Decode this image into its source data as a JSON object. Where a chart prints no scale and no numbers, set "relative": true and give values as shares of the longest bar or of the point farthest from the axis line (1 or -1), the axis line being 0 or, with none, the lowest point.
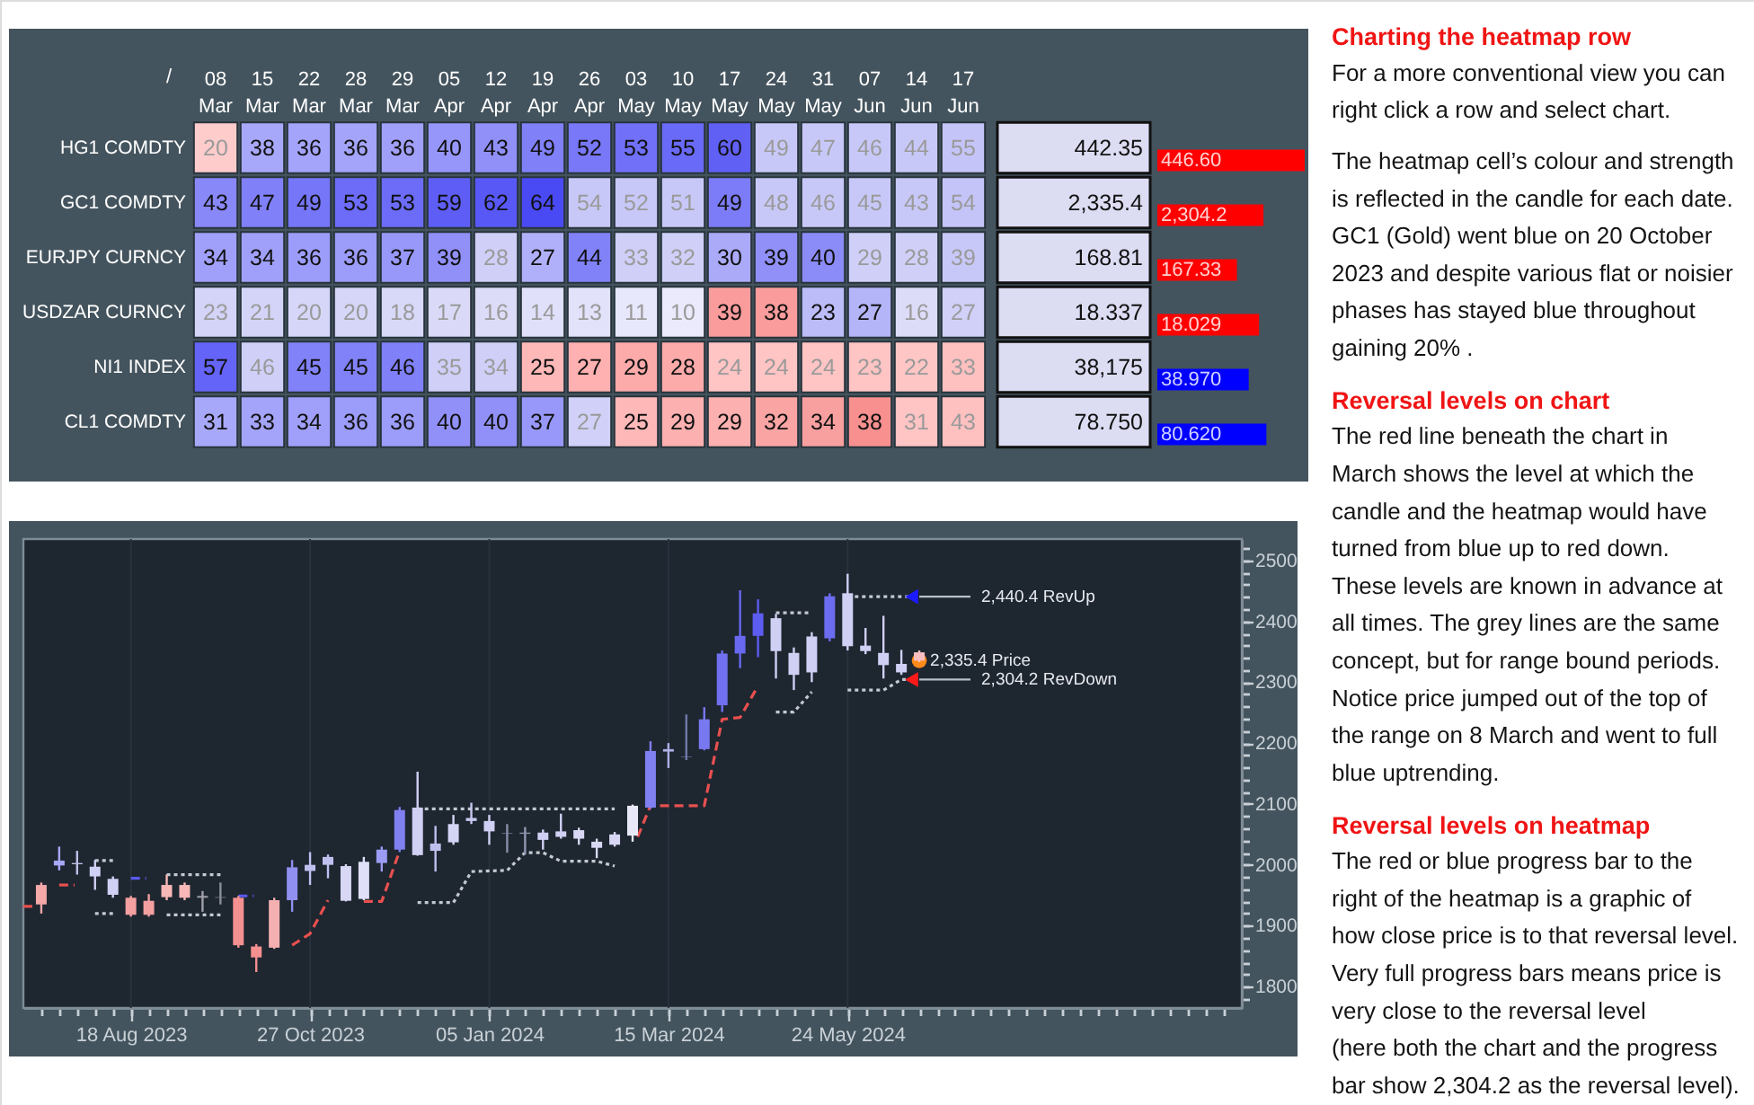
{
  "chart_data": [
    {
      "type": "heatmap",
      "categories": [
        "08 Mar",
        "15 Mar",
        "22 Mar",
        "28 Mar",
        "29 Mar",
        "05 Apr",
        "12 Apr",
        "19 Apr",
        "26 Apr",
        "03 May",
        "10 May",
        "17 May",
        "24 May",
        "31 May",
        "07 Jun",
        "14 Jun",
        "17 Jun"
      ],
      "y_categories": [
        "HG1 COMDTY",
        "GC1 COMDTY",
        "EURJPY CURNCY",
        "USDZAR CURNCY",
        "NI1 INDEX",
        "CL1 COMDTY"
      ],
      "y2_categories": [
        "442.35",
        "2,335.4",
        "168.81",
        "18.337",
        "38,175",
        "78.750"
      ],
      "cells": [
        [
          20,
          38,
          36,
          36,
          36,
          40,
          43,
          49,
          52,
          53,
          55,
          60,
          49,
          47,
          46,
          44,
          55
        ],
        [
          43,
          47,
          49,
          53,
          53,
          59,
          62,
          64,
          54,
          52,
          51,
          49,
          48,
          46,
          45,
          43,
          54
        ],
        [
          34,
          34,
          36,
          36,
          37,
          39,
          28,
          27,
          44,
          33,
          32,
          30,
          39,
          40,
          29,
          28,
          39
        ],
        [
          23,
          21,
          20,
          20,
          18,
          17,
          16,
          14,
          13,
          11,
          10,
          39,
          38,
          23,
          27,
          16,
          27
        ],
        [
          57,
          46,
          45,
          45,
          46,
          35,
          34,
          25,
          27,
          29,
          28,
          24,
          24,
          24,
          23,
          22,
          33
        ],
        [
          31,
          33,
          34,
          36,
          36,
          40,
          40,
          37,
          27,
          25,
          29,
          29,
          32,
          34,
          38,
          31,
          43
        ]
      ],
      "colors": [
        [
          "#ffcccc",
          "#a8a8fa",
          "#a4a4fa",
          "#a4a4fa",
          "#a0a0fa",
          "#9696fa",
          "#9090f8",
          "#8080f8",
          "#7878f8",
          "#7070f8",
          "#6a6af8",
          "#6060f5",
          "#c8c8f8",
          "#c8c8f8",
          "#c8c8f8",
          "#c8c8f8",
          "#c4c4f8"
        ],
        [
          "#8888f8",
          "#8080f8",
          "#7676f8",
          "#6c6cf8",
          "#6c6cf8",
          "#5e5ef6",
          "#5858f6",
          "#4a4af4",
          "#c8c8f8",
          "#c8c8f8",
          "#c8c8f8",
          "#7c7cf8",
          "#c8c8f8",
          "#c8c8f8",
          "#c8c8f8",
          "#c8c8f8",
          "#c4c4f8"
        ],
        [
          "#a0a0fa",
          "#a0a0fa",
          "#9c9cfa",
          "#9c9cfa",
          "#9898fa",
          "#9090f8",
          "#cfcff8",
          "#b0b0fa",
          "#8282f8",
          "#cfcff8",
          "#cfcff8",
          "#aaaaf8",
          "#9090f8",
          "#8c8cf8",
          "#cfcff8",
          "#cfcff8",
          "#c8c8f8"
        ],
        [
          "#d4d4f8",
          "#d4d4f8",
          "#d6d6f8",
          "#d6d6f8",
          "#d8d8f8",
          "#dadaf8",
          "#dcdcf8",
          "#e0e0fa",
          "#e2e2fa",
          "#e8e8fc",
          "#eaeafc",
          "#fa9c9c",
          "#fa9c9c",
          "#bcbcf8",
          "#b4b4f8",
          "#dcdcf8",
          "#d0d0f8"
        ],
        [
          "#6464f8",
          "#cfcff8",
          "#8282f8",
          "#8282f8",
          "#8080f8",
          "#cfcff8",
          "#cfcff8",
          "#ffb8b8",
          "#ffb0b0",
          "#fcaaaa",
          "#fcaaaa",
          "#ffc4c4",
          "#ffc4c4",
          "#ffc4c4",
          "#ffc4c4",
          "#ffc6c6",
          "#ffc0c0"
        ],
        [
          "#a8a8fa",
          "#a4a4fa",
          "#a0a0fa",
          "#9c9cfa",
          "#9c9cfa",
          "#9090f8",
          "#9090f8",
          "#9898fa",
          "#d0d0f8",
          "#ffb8b8",
          "#fcb0b0",
          "#fcb0b0",
          "#faa4a4",
          "#f8a0a0",
          "#f89090",
          "#ffc4c4",
          "#ffc0c0"
        ]
      ],
      "data_labels": true,
      "annotations": [
        "/"
      ]
    },
    {
      "type": "bar",
      "orientation": "horizontal",
      "relative": true,
      "categories": [
        "446.60",
        "2,304.2",
        "167.33",
        "18.029",
        "38.970",
        "80.620"
      ],
      "values": [
        1,
        0.72,
        0.54,
        0.69,
        0.62,
        0.74
      ],
      "colors": [
        "#ff0000",
        "#ff0000",
        "#ff0000",
        "#ff0000",
        "#0000ff",
        "#0000ff"
      ]
    },
    {
      "type": "candlestick",
      "x": [
        "2023-07-14",
        "2023-07-21",
        "2023-07-28",
        "2023-08-04",
        "2023-08-11",
        "2023-08-18",
        "2023-08-25",
        "2023-09-01",
        "2023-09-08",
        "2023-09-15",
        "2023-09-22",
        "2023-09-29",
        "2023-10-06",
        "2023-10-13",
        "2023-10-20",
        "2023-10-27",
        "2023-11-03",
        "2023-11-10",
        "2023-11-17",
        "2023-11-24",
        "2023-12-01",
        "2023-12-08",
        "2023-12-15",
        "2023-12-22",
        "2023-12-29",
        "2024-01-05",
        "2024-01-12",
        "2024-01-19",
        "2024-01-26",
        "2024-02-02",
        "2024-02-09",
        "2024-02-16",
        "2024-02-23",
        "2024-03-01",
        "2024-03-08",
        "2024-03-15",
        "2024-03-22",
        "2024-03-29",
        "2024-04-05",
        "2024-04-12",
        "2024-04-19",
        "2024-04-26",
        "2024-05-03",
        "2024-05-10",
        "2024-05-17",
        "2024-05-24",
        "2024-05-31",
        "2024-06-07",
        "2024-06-14",
        "2024-06-21"
      ],
      "ohlc": [
        [
          1967,
          1971,
          1920,
          1935
        ],
        [
          1999,
          2030,
          1991,
          2007
        ],
        [
          2001,
          2023,
          1984,
          2003
        ],
        [
          1981,
          2008,
          1959,
          1997
        ],
        [
          1951,
          1981,
          1946,
          1977
        ],
        [
          1946,
          1949,
          1915,
          1918
        ],
        [
          1941,
          1952,
          1915,
          1918
        ],
        [
          1967,
          1984,
          1942,
          1947
        ],
        [
          1967,
          1971,
          1942,
          1946
        ],
        [
          1946,
          1957,
          1923,
          1949
        ],
        [
          1946,
          1971,
          1935,
          1947
        ],
        [
          1946,
          1949,
          1864,
          1868
        ],
        [
          1866,
          1870,
          1824,
          1848
        ],
        [
          1942,
          1946,
          1862,
          1864
        ],
        [
          1942,
          2008,
          1923,
          1996
        ],
        [
          1990,
          2021,
          1967,
          2000
        ],
        [
          2000,
          2017,
          1978,
          2013
        ],
        [
          1941,
          2001,
          1940,
          1998
        ],
        [
          1944,
          2013,
          1942,
          2005
        ],
        [
          2003,
          2030,
          1989,
          2025
        ],
        [
          2025,
          2095,
          2021,
          2090
        ],
        [
          2016,
          2153,
          2015,
          2094
        ],
        [
          2023,
          2064,
          1989,
          2035
        ],
        [
          2037,
          2082,
          2033,
          2067
        ],
        [
          2072,
          2102,
          2067,
          2077
        ],
        [
          2055,
          2082,
          2033,
          2072
        ],
        [
          2051,
          2067,
          2020,
          2052
        ],
        [
          2051,
          2062,
          2017,
          2053
        ],
        [
          2041,
          2058,
          2025,
          2053
        ],
        [
          2046,
          2084,
          2043,
          2055
        ],
        [
          2043,
          2061,
          2033,
          2057
        ],
        [
          2028,
          2043,
          2011,
          2038
        ],
        [
          2033,
          2054,
          2030,
          2050
        ],
        [
          2048,
          2099,
          2038,
          2097
        ],
        [
          2094,
          2203,
          2092,
          2187
        ],
        [
          2186,
          2200,
          2159,
          2190
        ],
        [
          2177,
          2247,
          2172,
          2178
        ],
        [
          2190,
          2259,
          2188,
          2239
        ],
        [
          2262,
          2352,
          2251,
          2347
        ],
        [
          2347,
          2451,
          2323,
          2376
        ],
        [
          2376,
          2436,
          2341,
          2413
        ],
        [
          2351,
          2412,
          2306,
          2405
        ],
        [
          2312,
          2357,
          2287,
          2348
        ],
        [
          2316,
          2382,
          2300,
          2375
        ],
        [
          2372,
          2446,
          2367,
          2441
        ],
        [
          2359,
          2478,
          2352,
          2446
        ],
        [
          2351,
          2389,
          2346,
          2360
        ],
        [
          2328,
          2409,
          2306,
          2348
        ],
        [
          2316,
          2353,
          2312,
          2330
        ],
        [
          2349,
          2352,
          2333,
          2335.4
        ]
      ],
      "colors": [
        "#f4a8a8",
        "#a8a8f8",
        "#c0c0e8",
        "#d0d0f4",
        "#d0d0f4",
        "#f4a0a0",
        "#f4a0a0",
        "#f8b8b8",
        "#f8b8b8",
        "#a0a0a8",
        "#8a8f99",
        "#f49090",
        "#f49090",
        "#f4b0b0",
        "#9090f0",
        "#c0c0f0",
        "#c0c0f0",
        "#d8d8f4",
        "#e0e0f8",
        "#9c9cf4",
        "#8080f0",
        "#d0d0f4",
        "#c0c0ee",
        "#d4d4f4",
        "#c8c8f0",
        "#d0d0f4",
        "#8890a8",
        "#9098b0",
        "#d0d0f4",
        "#d0d0f4",
        "#d8d8f4",
        "#d8d8f4",
        "#d8d8f4",
        "#e8e8f8",
        "#8080f0",
        "#b0b0e8",
        "#707aa8",
        "#7878f0",
        "#7070f0",
        "#6868f0",
        "#5c5cf0",
        "#d0d0f4",
        "#d0d0f4",
        "#d0d0f4",
        "#6c6cf0",
        "#d0d0f4",
        "#d0d0f4",
        "#d0d0f4",
        "#d0d0f4",
        "#f8c0c0"
      ],
      "series": [
        {
          "type": "line",
          "color": "#e8504f",
          "line_style": "dashed",
          "x": [
            "2023-07-07",
            "2023-07-11",
            "2023-07-15",
            "2023-07-21",
            "2023-07-27",
            "2023-09-01",
            "2023-10-20",
            "2023-10-27",
            "2023-11-03",
            "2023-11-10",
            "2023-11-17",
            "2023-11-24",
            "2023-12-01",
            "2024-01-15",
            "2024-03-03",
            "2024-03-08",
            "2024-03-29",
            "2024-04-05",
            "2024-04-12",
            "2024-04-19"
          ],
          "values": [
            1932,
            1932,
            null,
            1967,
            1967,
            null,
            1868,
            1887,
            1942,
            null,
            1940,
            1940,
            2023,
            null,
            2046,
            2097,
            2097,
            2239,
            2242,
            2294
          ]
        },
        {
          "type": "line",
          "color": "#5a5af0",
          "line_style": "dashed",
          "x": [
            "2023-08-18",
            "2023-08-24",
            "2023-09-10",
            "2023-09-29",
            "2023-10-05"
          ],
          "values": [
            1978,
            1978,
            null,
            1949,
            1949
          ]
        },
        {
          "type": "line",
          "color": "#c4c8d0",
          "line_style": "dotted",
          "x": [
            "2023-08-04",
            "2023-08-11",
            "2023-08-20",
            "2023-09-01",
            "2023-09-22",
            "2023-10-30",
            "2023-12-08",
            "2024-02-23",
            "2024-03-30",
            "2024-04-26",
            "2024-05-10",
            "2024-05-17",
            "2024-05-24",
            "2024-06-17"
          ],
          "values": [
            2007,
            2007,
            null,
            1984,
            1984,
            null,
            2092,
            2092,
            null,
            2414,
            2414,
            null,
            2440.4,
            2440.4
          ]
        },
        {
          "type": "line",
          "color": "#c4c8d0",
          "line_style": "dotted",
          "x": [
            "2023-08-04",
            "2023-08-11",
            "2023-08-20",
            "2023-09-01",
            "2023-09-22",
            "2023-10-30",
            "2023-12-08",
            "2023-12-22",
            "2023-12-29",
            "2024-01-12",
            "2024-01-19",
            "2024-01-26",
            "2024-02-02",
            "2024-02-16",
            "2024-02-23",
            "2024-03-30",
            "2024-04-26",
            "2024-05-03",
            "2024-05-10",
            "2024-05-17",
            "2024-05-24",
            "2024-06-07",
            "2024-06-14",
            "2024-06-17"
          ],
          "values": [
            1920,
            1920,
            null,
            1918,
            1918,
            null,
            1938,
            1938,
            1989,
            1991,
            2020,
            2020,
            2006,
            2006,
            1998,
            null,
            2251,
            2251,
            2284,
            null,
            2287,
            2287,
            2304.2,
            2304.2
          ]
        },
        {
          "type": "line",
          "color": "#b8bec6",
          "x": [
            "2024-06-21",
            "2024-07-11"
          ],
          "values": [
            2440.4,
            2440.4
          ]
        },
        {
          "type": "line",
          "color": "#b8bec6",
          "x": [
            "2024-06-21",
            "2024-07-11"
          ],
          "values": [
            2304.2,
            2304.2
          ]
        },
        {
          "type": "scatter",
          "marker": "triangle",
          "color": "#1a1aff",
          "x": [
            "2024-06-18"
          ],
          "values": [
            2440.4
          ]
        },
        {
          "type": "scatter",
          "marker": "triangle",
          "color": "#ff1a1a",
          "x": [
            "2024-06-18"
          ],
          "values": [
            2304.2
          ]
        },
        {
          "type": "scatter",
          "marker": "circle",
          "color": "#ff8a1a",
          "x": [
            "2024-06-21"
          ],
          "values": [
            2335.4
          ]
        }
      ],
      "annotations": [
        {
          "text": "2,440.4 RevUp",
          "x": "2024-07-11",
          "y": 2440.4
        },
        {
          "text": "2,335.4 Price",
          "x": "2024-06-21",
          "y": 2335.4
        },
        {
          "text": "2,304.2 RevDown",
          "x": "2024-07-11",
          "y": 2304.2
        }
      ],
      "xlim": [
        "2023-07-07",
        "2024-10-25"
      ],
      "ylim": [
        1765,
        2535
      ],
      "xticks": [
        {
          "value": "2023-07-14",
          "label": null
        },
        {
          "value": "2023-07-21",
          "label": null
        },
        {
          "value": "2023-07-28",
          "label": null
        },
        {
          "value": "2023-08-04",
          "label": null
        },
        {
          "value": "2023-08-11",
          "label": null
        },
        {
          "value": "2023-08-18",
          "label": "18 Aug 2023"
        },
        {
          "value": "2023-08-25",
          "label": null
        },
        {
          "value": "2023-09-01",
          "label": null
        },
        {
          "value": "2023-09-08",
          "label": null
        },
        {
          "value": "2023-09-15",
          "label": null
        },
        {
          "value": "2023-09-22",
          "label": null
        },
        {
          "value": "2023-09-29",
          "label": null
        },
        {
          "value": "2023-10-06",
          "label": null
        },
        {
          "value": "2023-10-13",
          "label": null
        },
        {
          "value": "2023-10-20",
          "label": null
        },
        {
          "value": "2023-10-27",
          "label": "27 Oct 2023"
        },
        {
          "value": "2023-11-03",
          "label": null
        },
        {
          "value": "2023-11-10",
          "label": null
        },
        {
          "value": "2023-11-17",
          "label": null
        },
        {
          "value": "2023-11-24",
          "label": null
        },
        {
          "value": "2023-12-01",
          "label": null
        },
        {
          "value": "2023-12-08",
          "label": null
        },
        {
          "value": "2023-12-15",
          "label": null
        },
        {
          "value": "2023-12-22",
          "label": null
        },
        {
          "value": "2023-12-29",
          "label": null
        },
        {
          "value": "2024-01-05",
          "label": "05 Jan 2024"
        },
        {
          "value": "2024-01-12",
          "label": null
        },
        {
          "value": "2024-01-19",
          "label": null
        },
        {
          "value": "2024-01-26",
          "label": null
        },
        {
          "value": "2024-02-02",
          "label": null
        },
        {
          "value": "2024-02-09",
          "label": null
        },
        {
          "value": "2024-02-16",
          "label": null
        },
        {
          "value": "2024-02-23",
          "label": null
        },
        {
          "value": "2024-03-01",
          "label": null
        },
        {
          "value": "2024-03-08",
          "label": null
        },
        {
          "value": "2024-03-15",
          "label": "15 Mar 2024"
        },
        {
          "value": "2024-03-22",
          "label": null
        },
        {
          "value": "2024-03-29",
          "label": null
        },
        {
          "value": "2024-04-05",
          "label": null
        },
        {
          "value": "2024-04-12",
          "label": null
        },
        {
          "value": "2024-04-19",
          "label": null
        },
        {
          "value": "2024-04-26",
          "label": null
        },
        {
          "value": "2024-05-03",
          "label": null
        },
        {
          "value": "2024-05-10",
          "label": null
        },
        {
          "value": "2024-05-17",
          "label": null
        },
        {
          "value": "2024-05-24",
          "label": "24 May 2024"
        },
        {
          "value": "2024-05-31",
          "label": null
        },
        {
          "value": "2024-06-07",
          "label": null
        },
        {
          "value": "2024-06-14",
          "label": null
        },
        {
          "value": "2024-06-21",
          "label": null
        },
        {
          "value": "2024-06-28",
          "label": null
        },
        {
          "value": "2024-07-05",
          "label": null
        },
        {
          "value": "2024-07-12",
          "label": null
        },
        {
          "value": "2024-07-19",
          "label": null
        },
        {
          "value": "2024-07-26",
          "label": null
        },
        {
          "value": "2024-08-02",
          "label": null
        },
        {
          "value": "2024-08-09",
          "label": null
        },
        {
          "value": "2024-08-16",
          "label": null
        },
        {
          "value": "2024-08-23",
          "label": null
        },
        {
          "value": "2024-08-30",
          "label": null
        },
        {
          "value": "2024-09-06",
          "label": null
        },
        {
          "value": "2024-09-13",
          "label": null
        },
        {
          "value": "2024-09-20",
          "label": null
        },
        {
          "value": "2024-09-27",
          "label": null
        },
        {
          "value": "2024-10-04",
          "label": null
        },
        {
          "value": "2024-10-11",
          "label": null
        },
        {
          "value": "2024-10-18",
          "label": null
        }
      ],
      "yticks": [
        {
          "value": 1780,
          "label": null
        },
        1800,
        {
          "value": 1820,
          "label": null
        },
        {
          "value": 1840,
          "label": null
        },
        {
          "value": 1860,
          "label": null
        },
        {
          "value": 1880,
          "label": null
        },
        1900,
        {
          "value": 1920,
          "label": null
        },
        {
          "value": 1940,
          "label": null
        },
        {
          "value": 1960,
          "label": null
        },
        {
          "value": 1980,
          "label": null
        },
        2000,
        {
          "value": 2020,
          "label": null
        },
        {
          "value": 2040,
          "label": null
        },
        {
          "value": 2060,
          "label": null
        },
        {
          "value": 2080,
          "label": null
        },
        2100,
        {
          "value": 2120,
          "label": null
        },
        {
          "value": 2140,
          "label": null
        },
        {
          "value": 2160,
          "label": null
        },
        {
          "value": 2180,
          "label": null
        },
        2200,
        {
          "value": 2220,
          "label": null
        },
        {
          "value": 2240,
          "label": null
        },
        {
          "value": 2260,
          "label": null
        },
        {
          "value": 2280,
          "label": null
        },
        2300,
        {
          "value": 2320,
          "label": null
        },
        {
          "value": 2340,
          "label": null
        },
        {
          "value": 2360,
          "label": null
        },
        {
          "value": 2380,
          "label": null
        },
        2400,
        {
          "value": 2420,
          "label": null
        },
        {
          "value": 2440,
          "label": null
        },
        {
          "value": 2460,
          "label": null
        },
        {
          "value": 2480,
          "label": null
        },
        2500,
        {
          "value": 2520,
          "label": null
        }
      ],
      "grid": "x"
    },
    {
      "type": "other",
      "title": "Charting the heatmap row",
      "annotations": [
        "For a more conventional view you can\nright click a row and select chart.",
        "The heatmap cell’s colour and strength\nis reflected in the candle for each date.\nGC1 (Gold) went blue on 20 October\n2023 and despite various flat or noisier\nphases has stayed blue throughout\ngaining 20% ."
      ]
    },
    {
      "type": "other",
      "title": "Reversal levels on chart",
      "annotations": [
        "The red line beneath the chart in\nMarch shows the level at which the\ncandle and the heatmap would have\nturned from blue up to red down.\nThese levels are known in advance at\nall times.  The grey lines are the same\nconcept, but for range bound periods.\nNotice price jumped out of the top of\nthe range on 8 March and went to full\nblue uptrending."
      ]
    },
    {
      "type": "other",
      "title": "Reversal levels on heatmap",
      "annotations": [
        "The red or blue progress bar to the\nright of the heatmap is a graphic of\nhow close price is to that reversal level.\nVery full progress bars means price is\nvery close to the reversal level\n(here both the chart and the progress\nbar show 2,304.2 as the reversal level)."
      ]
    }
  ]
}
